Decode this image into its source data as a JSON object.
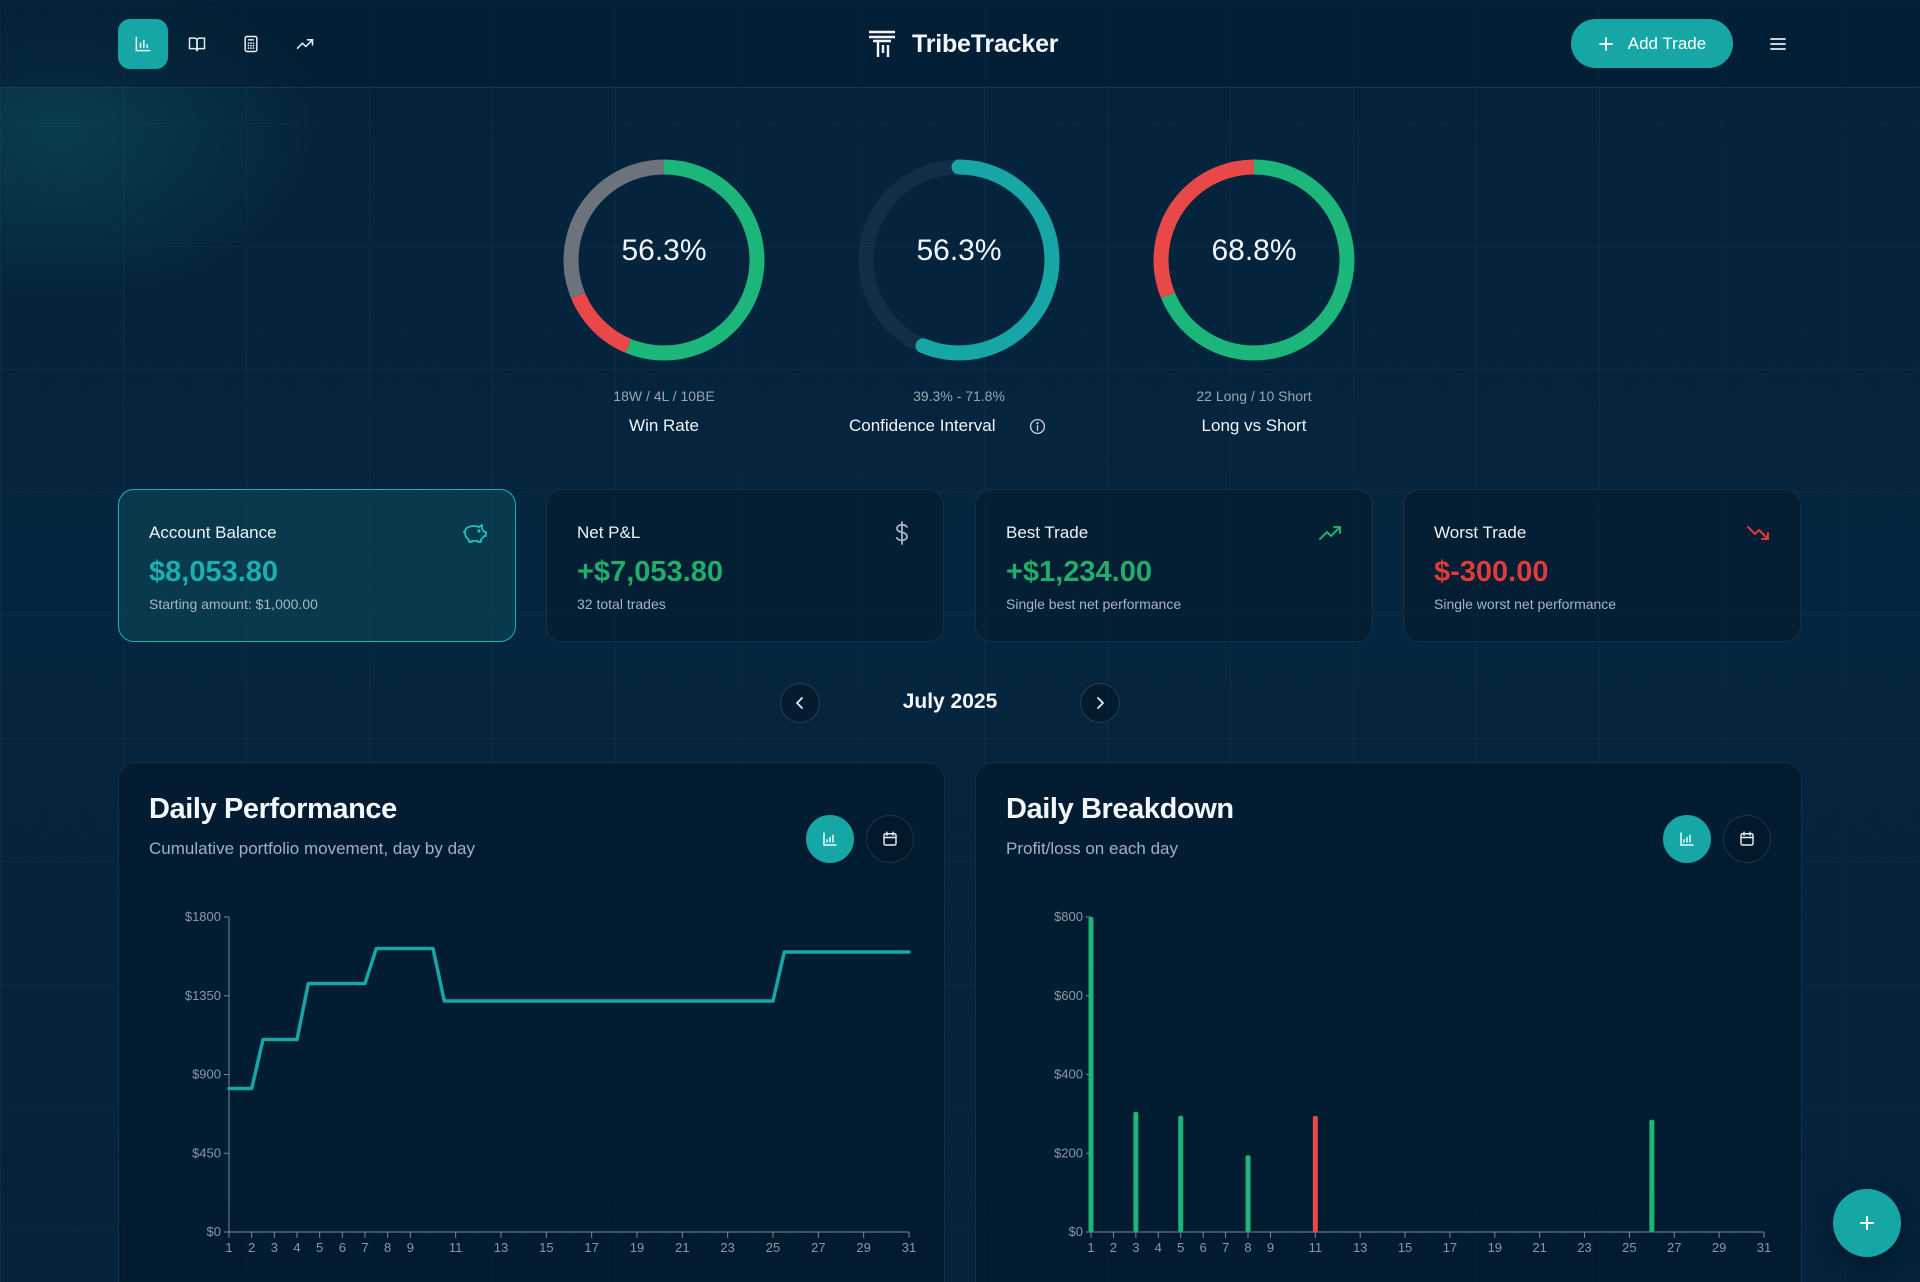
{
  "header": {
    "brand": "TribeTracker",
    "add_trade_label": "Add Trade",
    "nav_icons": [
      "bar-chart-icon",
      "book-icon",
      "calculator-icon",
      "trending-up-icon"
    ]
  },
  "stats": [
    {
      "value": "56.3%",
      "sub": "18W / 4L / 10BE",
      "label": "Win Rate",
      "segments": [
        {
          "name": "wins",
          "fraction": 0.5625,
          "color": "#1cb57a"
        },
        {
          "name": "losses",
          "fraction": 0.125,
          "color": "#e94848"
        },
        {
          "name": "breakeven",
          "fraction": 0.3125,
          "color": "#6c737c"
        }
      ]
    },
    {
      "value": "56.3%",
      "sub": "39.3% - 71.8%",
      "label": "Confidence Interval",
      "arc_start": 0.0,
      "arc_fraction": 0.563,
      "color": "#17a6a6"
    },
    {
      "value": "68.8%",
      "sub": "22 Long / 10 Short",
      "label": "Long vs Short",
      "segments": [
        {
          "name": "long",
          "fraction": 0.6875,
          "color": "#1cb57a"
        },
        {
          "name": "short",
          "fraction": 0.3125,
          "color": "#e94848"
        }
      ]
    }
  ],
  "cards": [
    {
      "title": "Account Balance",
      "value": "$8,053.80",
      "sub": "Starting amount: $1,000.00",
      "icon": "piggy-bank-icon",
      "color": "#19b0b0"
    },
    {
      "title": "Net P&L",
      "value": "+$7,053.80",
      "sub": "32 total trades",
      "icon": "dollar-sign-icon",
      "color": "#1fae6b"
    },
    {
      "title": "Best Trade",
      "value": "+$1,234.00",
      "sub": "Single best net performance",
      "icon": "trending-up-icon",
      "color": "#1fae6b"
    },
    {
      "title": "Worst Trade",
      "value": "$-300.00",
      "sub": "Single worst net performance",
      "icon": "trending-down-icon",
      "color": "#e03a3a"
    }
  ],
  "month": {
    "label": "July 2025"
  },
  "panels": {
    "performance": {
      "title": "Daily Performance",
      "subtitle": "Cumulative portfolio movement, day by day"
    },
    "breakdown": {
      "title": "Daily Breakdown",
      "subtitle": "Profit/loss on each day"
    }
  },
  "chart_data": [
    {
      "type": "line",
      "title": "Daily Performance",
      "x_ticks": [
        1,
        2,
        3,
        4,
        5,
        6,
        7,
        8,
        9,
        11,
        13,
        15,
        17,
        19,
        21,
        23,
        25,
        27,
        29,
        31
      ],
      "y_ticks": [
        "$0",
        "$450",
        "$900",
        "$1350",
        "$1800"
      ],
      "ylim": [
        0,
        1800
      ],
      "xlim": [
        1,
        31
      ],
      "color": "#17a6a6",
      "points": [
        [
          1,
          820
        ],
        [
          2,
          820
        ],
        [
          2.5,
          1100
        ],
        [
          3,
          1100
        ],
        [
          4,
          1100
        ],
        [
          4.5,
          1420
        ],
        [
          5,
          1420
        ],
        [
          7,
          1420
        ],
        [
          7.5,
          1620
        ],
        [
          8,
          1620
        ],
        [
          10,
          1620
        ],
        [
          10.5,
          1320
        ],
        [
          11,
          1320
        ],
        [
          25,
          1320
        ],
        [
          25.5,
          1600
        ],
        [
          26,
          1600
        ],
        [
          31,
          1600
        ]
      ]
    },
    {
      "type": "bar",
      "title": "Daily Breakdown",
      "x_ticks": [
        1,
        2,
        3,
        4,
        5,
        6,
        7,
        8,
        9,
        11,
        13,
        15,
        17,
        19,
        21,
        23,
        25,
        27,
        29,
        31
      ],
      "y_ticks": [
        "$0",
        "$200",
        "$400",
        "$600",
        "$800"
      ],
      "ylim": [
        0,
        800
      ],
      "xlim": [
        1,
        31
      ],
      "positive_color": "#1cb57a",
      "negative_color": "#e94848",
      "bars": [
        {
          "day": 1,
          "value": 800
        },
        {
          "day": 3,
          "value": 305
        },
        {
          "day": 5,
          "value": 295
        },
        {
          "day": 8,
          "value": 195
        },
        {
          "day": 11,
          "value": 295,
          "negative": true
        },
        {
          "day": 26,
          "value": 285
        }
      ]
    }
  ]
}
